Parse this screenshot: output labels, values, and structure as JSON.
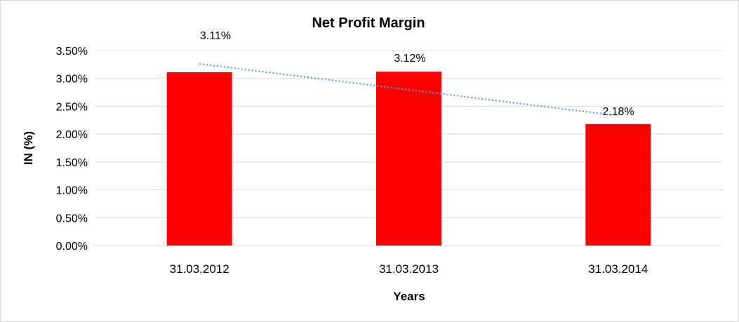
{
  "chart_data": {
    "type": "bar",
    "title": "Net Profit Margin",
    "xlabel": "Years",
    "ylabel": "IN (%)",
    "categories": [
      "31.03.2012",
      "31.03.2013",
      "31.03.2014"
    ],
    "values": [
      3.11,
      3.12,
      2.18
    ],
    "data_labels": [
      "3.11%",
      "3.12%",
      "2.18%"
    ],
    "ylim": [
      0,
      3.5
    ],
    "yticks": [
      0,
      0.5,
      1.0,
      1.5,
      2.0,
      2.5,
      3.0,
      3.5
    ],
    "ytick_labels": [
      "0.00%",
      "0.50%",
      "1.00%",
      "1.50%",
      "2.00%",
      "2.50%",
      "3.00%",
      "3.50%"
    ],
    "grid": true,
    "legend": "none",
    "trendline": {
      "type": "linear",
      "style": "dotted",
      "start": 3.26,
      "end": 2.33
    },
    "colors": {
      "bar": "#ff0000",
      "trendline": "#5b9bd5",
      "grid": "#d9d9d9"
    }
  }
}
